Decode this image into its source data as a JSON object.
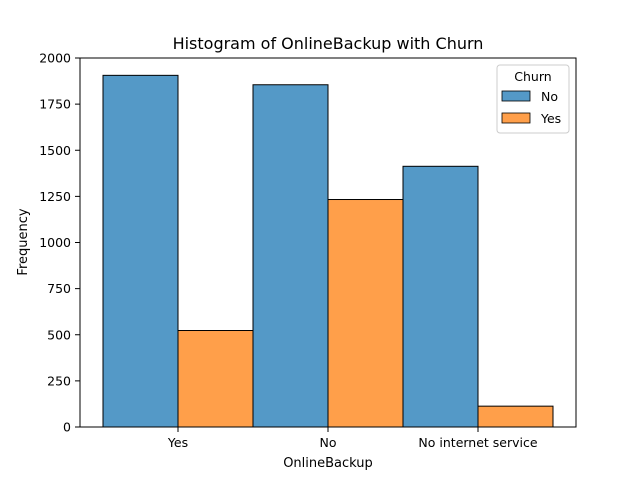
{
  "chart_data": {
    "type": "bar",
    "title": "Histogram of OnlineBackup with Churn",
    "xlabel": "OnlineBackup",
    "ylabel": "Frequency",
    "categories": [
      "Yes",
      "No",
      "No internet service"
    ],
    "series": [
      {
        "name": "No",
        "values": [
          1906,
          1855,
          1413
        ],
        "color": "#5499c7"
      },
      {
        "name": "Yes",
        "values": [
          523,
          1233,
          113
        ],
        "color": "#ff9f4a"
      }
    ],
    "ylim": [
      0,
      2000
    ],
    "yticks": [
      0,
      250,
      500,
      750,
      1000,
      1250,
      1500,
      1750,
      2000
    ],
    "legend": {
      "title": "Churn",
      "placement": "top-right"
    },
    "grid": false
  }
}
